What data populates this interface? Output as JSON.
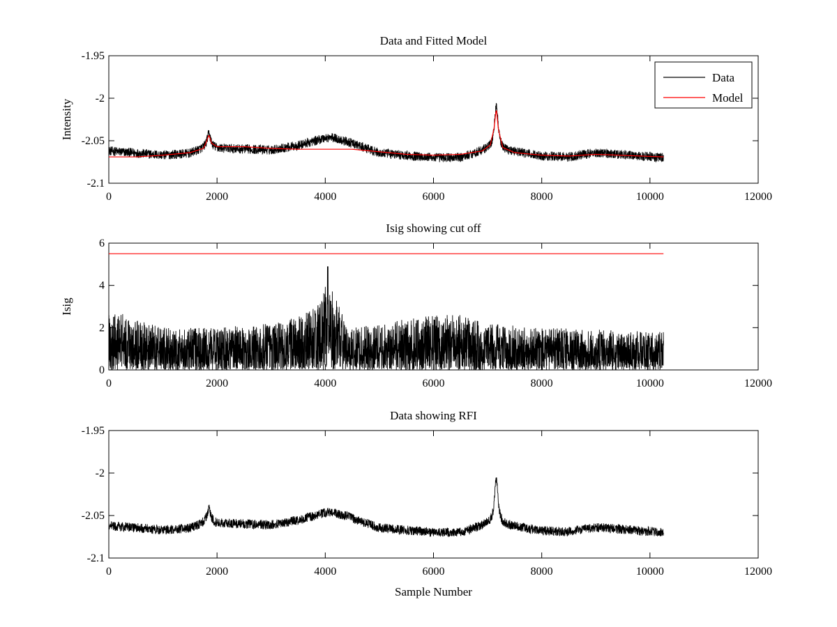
{
  "chart_data": [
    {
      "type": "line",
      "title": "Data and Fitted Model",
      "xlabel": "",
      "ylabel": "Intensity",
      "xlim": [
        0,
        12000
      ],
      "ylim": [
        -2.1,
        -1.95
      ],
      "xticks": [
        "0",
        "2000",
        "4000",
        "6000",
        "8000",
        "10000",
        "12000"
      ],
      "yticks": [
        "-1.95",
        "-2",
        "-2.05",
        "-2.1"
      ],
      "grid": false,
      "legend_position": "top-right",
      "series": [
        {
          "name": "Data",
          "color": "#000000",
          "style": "noisy",
          "x_range": [
            0,
            10250
          ],
          "noise_amplitude": 0.0055,
          "baseline": [
            [
              0,
              -2.062
            ],
            [
              1000,
              -2.067
            ],
            [
              1500,
              -2.065
            ],
            [
              1800,
              -2.058
            ],
            [
              2000,
              -2.059
            ],
            [
              3000,
              -2.061
            ],
            [
              3500,
              -2.056
            ],
            [
              4000,
              -2.048
            ],
            [
              4400,
              -2.052
            ],
            [
              5000,
              -2.065
            ],
            [
              6000,
              -2.07
            ],
            [
              6500,
              -2.07
            ],
            [
              7000,
              -2.06
            ],
            [
              7400,
              -2.062
            ],
            [
              8000,
              -2.068
            ],
            [
              8500,
              -2.069
            ],
            [
              9000,
              -2.064
            ],
            [
              10250,
              -2.07
            ]
          ],
          "peaks": [
            [
              1850,
              -2.04,
              40
            ],
            [
              7160,
              -2.002,
              40
            ],
            [
              4100,
              -2.046,
              150
            ]
          ]
        },
        {
          "name": "Model",
          "color": "#ff0000",
          "style": "smooth",
          "x_range": [
            0,
            10250
          ],
          "points": [
            [
              0,
              -2.069
            ],
            [
              500,
              -2.069
            ],
            [
              1000,
              -2.067
            ],
            [
              1500,
              -2.064
            ],
            [
              1750,
              -2.059
            ],
            [
              1800,
              -2.052
            ],
            [
              1850,
              -2.043
            ],
            [
              1900,
              -2.053
            ],
            [
              2000,
              -2.057
            ],
            [
              2500,
              -2.057
            ],
            [
              3000,
              -2.059
            ],
            [
              3500,
              -2.06
            ],
            [
              4000,
              -2.06
            ],
            [
              4500,
              -2.06
            ],
            [
              5000,
              -2.063
            ],
            [
              5500,
              -2.066
            ],
            [
              6000,
              -2.067
            ],
            [
              6500,
              -2.066
            ],
            [
              6900,
              -2.062
            ],
            [
              7050,
              -2.055
            ],
            [
              7120,
              -2.035
            ],
            [
              7160,
              -2.012
            ],
            [
              7200,
              -2.037
            ],
            [
              7280,
              -2.058
            ],
            [
              7500,
              -2.064
            ],
            [
              8000,
              -2.067
            ],
            [
              8500,
              -2.068
            ],
            [
              9000,
              -2.066
            ],
            [
              10250,
              -2.069
            ]
          ]
        }
      ]
    },
    {
      "type": "line",
      "title": "Isig showing cut off",
      "xlabel": "",
      "ylabel": "Isig",
      "xlim": [
        0,
        12000
      ],
      "ylim": [
        0,
        6
      ],
      "xticks": [
        "0",
        "2000",
        "4000",
        "6000",
        "8000",
        "10000",
        "12000"
      ],
      "yticks": [
        "0",
        "2",
        "4",
        "6"
      ],
      "grid": false,
      "series": [
        {
          "color": "#000000",
          "style": "noisy-positive",
          "x_range": [
            0,
            10250
          ],
          "envelope": [
            [
              0,
              3.0
            ],
            [
              400,
              2.5
            ],
            [
              1000,
              2.0
            ],
            [
              2000,
              2.0
            ],
            [
              3000,
              2.2
            ],
            [
              3500,
              2.5
            ],
            [
              3800,
              3.0
            ],
            [
              4000,
              4.2
            ],
            [
              4200,
              3.5
            ],
            [
              4400,
              2.0
            ],
            [
              5000,
              2.2
            ],
            [
              6000,
              2.6
            ],
            [
              6500,
              2.6
            ],
            [
              7000,
              2.2
            ],
            [
              8000,
              2.0
            ],
            [
              10250,
              1.8
            ]
          ],
          "peak_max": 4.9
        },
        {
          "color": "#ff0000",
          "style": "constant",
          "x_range": [
            0,
            10250
          ],
          "value": 5.5
        }
      ]
    },
    {
      "type": "line",
      "title": "Data showing RFI",
      "xlabel": "Sample Number",
      "ylabel": "",
      "xlim": [
        0,
        12000
      ],
      "ylim": [
        -2.1,
        -1.95
      ],
      "xticks": [
        "0",
        "2000",
        "4000",
        "6000",
        "8000",
        "10000",
        "12000"
      ],
      "yticks": [
        "-1.95",
        "-2",
        "-2.05",
        "-2.1"
      ],
      "grid": false,
      "series": [
        {
          "color": "#000000",
          "style": "noisy",
          "x_range": [
            0,
            10250
          ],
          "noise_amplitude": 0.0055,
          "baseline": [
            [
              0,
              -2.062
            ],
            [
              1000,
              -2.067
            ],
            [
              1500,
              -2.065
            ],
            [
              1800,
              -2.058
            ],
            [
              2000,
              -2.059
            ],
            [
              3000,
              -2.061
            ],
            [
              3500,
              -2.056
            ],
            [
              4000,
              -2.048
            ],
            [
              4400,
              -2.052
            ],
            [
              5000,
              -2.065
            ],
            [
              6000,
              -2.07
            ],
            [
              6500,
              -2.07
            ],
            [
              7000,
              -2.06
            ],
            [
              7400,
              -2.062
            ],
            [
              8000,
              -2.068
            ],
            [
              8500,
              -2.069
            ],
            [
              9000,
              -2.064
            ],
            [
              10250,
              -2.07
            ]
          ],
          "peaks": [
            [
              1850,
              -2.04,
              40
            ],
            [
              7160,
              -2.002,
              40
            ],
            [
              4100,
              -2.046,
              150
            ]
          ]
        }
      ]
    }
  ]
}
